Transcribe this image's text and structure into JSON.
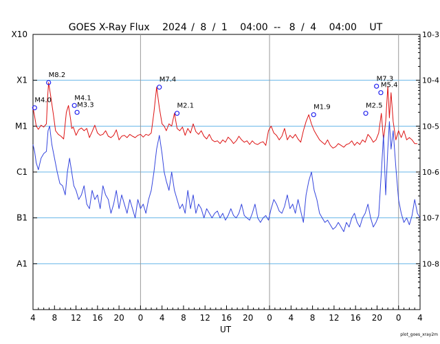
{
  "chart_data": {
    "type": "line",
    "title": {
      "name": "GOES X-Ray Flux",
      "start_year": "2024",
      "start_month": "8",
      "start_day": "1",
      "start_time": "04:00",
      "separator": "--",
      "end_month": "8",
      "end_day": "4",
      "end_time": "04:00",
      "unit": "UT"
    },
    "xlabel": "UT",
    "x_range_hours": [
      0,
      72
    ],
    "x_tick_labels": [
      "4",
      "8",
      "12",
      "16",
      "20",
      "0",
      "4",
      "8",
      "12",
      "16",
      "20",
      "0",
      "4",
      "8",
      "12",
      "16",
      "20",
      "0",
      "4"
    ],
    "day_boundaries_hours": [
      20,
      44,
      68
    ],
    "flare_class_labels": [
      "X10",
      "X1",
      "M1",
      "C1",
      "B1",
      "A1"
    ],
    "flare_class_exponents": [
      -3,
      -4,
      -5,
      -6,
      -7,
      -8
    ],
    "right_axis_labels": [
      "10-3",
      "10-4",
      "10-5",
      "10-6",
      "10-7",
      "10-8"
    ],
    "right_axis_exponents": [
      -3,
      -4,
      -5,
      -6,
      -7,
      -8
    ],
    "ylim_log10": [
      -9,
      -3
    ],
    "credit": "plot_goes_xray2m",
    "series": [
      {
        "name": "long",
        "color": "#dd1111",
        "x": [
          0.0,
          0.3,
          0.6,
          1.0,
          1.5,
          2.0,
          2.5,
          2.7,
          2.9,
          3.3,
          3.8,
          4.2,
          4.7,
          5.2,
          5.7,
          6.2,
          6.6,
          7.0,
          7.2,
          7.5,
          8.0,
          8.5,
          9.0,
          9.5,
          10.0,
          10.5,
          11.0,
          11.5,
          12.0,
          12.5,
          13.0,
          13.5,
          14.0,
          14.5,
          15.0,
          15.5,
          16.0,
          16.5,
          17.0,
          17.5,
          18.0,
          18.5,
          19.0,
          19.5,
          20.0,
          20.5,
          21.0,
          21.5,
          22.0,
          22.5,
          23.0,
          23.5,
          24.0,
          24.4,
          24.8,
          25.3,
          25.8,
          26.3,
          26.8,
          27.3,
          27.8,
          28.3,
          28.8,
          29.3,
          29.8,
          30.3,
          30.8,
          31.3,
          31.8,
          32.3,
          32.8,
          33.3,
          33.8,
          34.3,
          34.8,
          35.3,
          35.8,
          36.3,
          36.8,
          37.3,
          37.8,
          38.3,
          38.8,
          39.3,
          39.8,
          40.3,
          40.8,
          41.3,
          41.8,
          42.3,
          42.8,
          43.3,
          43.8,
          44.3,
          44.8,
          45.3,
          45.8,
          46.3,
          46.8,
          47.3,
          47.8,
          48.3,
          48.8,
          49.3,
          49.8,
          50.3,
          50.8,
          51.3,
          51.8,
          52.3,
          52.8,
          53.3,
          53.8,
          54.3,
          54.8,
          55.3,
          55.8,
          56.3,
          56.8,
          57.3,
          57.8,
          58.3,
          58.8,
          59.3,
          59.8,
          60.3,
          60.8,
          61.3,
          61.8,
          62.3,
          62.8,
          63.3,
          63.8,
          64.3,
          64.8,
          65.2,
          65.6,
          66.0,
          66.3,
          66.6,
          67.0,
          67.5,
          68.0,
          68.5,
          69.0,
          69.5,
          70.0,
          70.5,
          71.0,
          71.5,
          72.0
        ],
        "log10": [
          -4.6,
          -4.78,
          -5.0,
          -5.07,
          -4.98,
          -5.02,
          -4.95,
          -4.4,
          -4.05,
          -4.35,
          -4.75,
          -5.1,
          -5.18,
          -5.22,
          -5.28,
          -4.7,
          -4.55,
          -4.85,
          -5.05,
          -5.02,
          -5.2,
          -5.08,
          -5.04,
          -5.1,
          -5.05,
          -5.25,
          -5.12,
          -4.98,
          -5.15,
          -5.2,
          -5.18,
          -5.1,
          -5.22,
          -5.25,
          -5.2,
          -5.08,
          -5.3,
          -5.22,
          -5.2,
          -5.25,
          -5.18,
          -5.22,
          -5.25,
          -5.2,
          -5.18,
          -5.24,
          -5.18,
          -5.2,
          -5.15,
          -4.7,
          -4.15,
          -4.6,
          -4.95,
          -5.0,
          -5.1,
          -4.95,
          -5.0,
          -4.72,
          -5.05,
          -5.1,
          -5.02,
          -5.2,
          -5.05,
          -5.15,
          -4.95,
          -5.12,
          -5.18,
          -5.1,
          -5.22,
          -5.28,
          -5.18,
          -5.3,
          -5.34,
          -5.32,
          -5.38,
          -5.3,
          -5.35,
          -5.24,
          -5.3,
          -5.38,
          -5.32,
          -5.22,
          -5.3,
          -5.35,
          -5.32,
          -5.4,
          -5.32,
          -5.38,
          -5.4,
          -5.36,
          -5.34,
          -5.42,
          -5.1,
          -5.0,
          -5.15,
          -5.2,
          -5.3,
          -5.22,
          -5.05,
          -5.3,
          -5.2,
          -5.26,
          -5.18,
          -5.28,
          -5.35,
          -5.1,
          -4.9,
          -4.75,
          -4.95,
          -5.1,
          -5.2,
          -5.3,
          -5.35,
          -5.4,
          -5.3,
          -5.42,
          -5.48,
          -5.45,
          -5.38,
          -5.42,
          -5.46,
          -5.4,
          -5.38,
          -5.32,
          -5.42,
          -5.35,
          -5.4,
          -5.3,
          -5.35,
          -5.18,
          -5.25,
          -5.35,
          -5.3,
          -5.15,
          -4.72,
          -5.3,
          -4.9,
          -4.13,
          -4.82,
          -4.27,
          -4.9,
          -5.3,
          -5.1,
          -5.25,
          -5.1,
          -5.3,
          -5.25,
          -5.3,
          -5.38,
          -5.38
        ]
      },
      {
        "name": "short",
        "color": "#3344dd",
        "x": [
          0.0,
          0.3,
          0.6,
          1.0,
          1.5,
          2.0,
          2.5,
          2.8,
          3.1,
          3.5,
          4.0,
          4.5,
          5.0,
          5.5,
          6.0,
          6.4,
          6.8,
          7.2,
          7.6,
          8.0,
          8.5,
          9.0,
          9.5,
          10.0,
          10.5,
          11.0,
          11.5,
          12.0,
          12.5,
          13.0,
          13.5,
          14.0,
          14.5,
          15.0,
          15.5,
          16.0,
          16.5,
          17.0,
          17.5,
          18.0,
          18.5,
          19.0,
          19.5,
          20.0,
          20.5,
          21.0,
          21.5,
          22.0,
          22.5,
          23.0,
          23.5,
          24.0,
          24.4,
          24.8,
          25.3,
          25.8,
          26.3,
          26.8,
          27.3,
          27.8,
          28.3,
          28.8,
          29.3,
          29.8,
          30.3,
          30.8,
          31.3,
          31.8,
          32.3,
          32.8,
          33.3,
          33.8,
          34.3,
          34.8,
          35.3,
          35.8,
          36.3,
          36.8,
          37.3,
          37.8,
          38.3,
          38.8,
          39.3,
          39.8,
          40.3,
          40.8,
          41.3,
          41.8,
          42.3,
          42.8,
          43.3,
          43.8,
          44.3,
          44.8,
          45.3,
          45.8,
          46.3,
          46.8,
          47.3,
          47.8,
          48.3,
          48.8,
          49.3,
          49.8,
          50.3,
          50.8,
          51.3,
          51.8,
          52.3,
          52.8,
          53.3,
          53.8,
          54.3,
          54.8,
          55.3,
          55.8,
          56.3,
          56.8,
          57.3,
          57.8,
          58.3,
          58.8,
          59.3,
          59.8,
          60.3,
          60.8,
          61.3,
          61.8,
          62.3,
          62.8,
          63.3,
          63.8,
          64.3,
          64.8,
          65.2,
          65.6,
          66.0,
          66.3,
          66.6,
          67.0,
          67.5,
          68.0,
          68.5,
          69.0,
          69.5,
          70.0,
          70.5,
          71.0,
          71.5,
          72.0
        ],
        "log10": [
          -5.4,
          -5.55,
          -5.8,
          -5.95,
          -5.7,
          -5.6,
          -5.55,
          -5.1,
          -5.0,
          -5.4,
          -5.7,
          -6.0,
          -6.25,
          -6.3,
          -6.5,
          -6.0,
          -5.7,
          -6.0,
          -6.3,
          -6.4,
          -6.6,
          -6.5,
          -6.3,
          -6.7,
          -6.8,
          -6.4,
          -6.6,
          -6.5,
          -6.8,
          -6.3,
          -6.5,
          -6.6,
          -6.9,
          -6.7,
          -6.4,
          -6.8,
          -6.5,
          -6.7,
          -6.9,
          -6.6,
          -6.8,
          -7.0,
          -6.6,
          -6.8,
          -6.7,
          -6.9,
          -6.6,
          -6.4,
          -6.0,
          -5.5,
          -5.2,
          -5.6,
          -6.0,
          -6.2,
          -6.4,
          -6.0,
          -6.4,
          -6.6,
          -6.8,
          -6.7,
          -6.9,
          -6.4,
          -6.8,
          -6.5,
          -6.9,
          -6.7,
          -6.8,
          -7.0,
          -6.8,
          -6.9,
          -7.0,
          -6.9,
          -6.85,
          -7.0,
          -6.9,
          -7.05,
          -6.95,
          -6.8,
          -6.95,
          -7.0,
          -6.9,
          -6.7,
          -6.95,
          -7.0,
          -7.05,
          -6.9,
          -6.7,
          -7.0,
          -7.1,
          -7.0,
          -6.95,
          -7.05,
          -6.8,
          -6.6,
          -6.7,
          -6.85,
          -6.9,
          -6.75,
          -6.5,
          -6.8,
          -6.7,
          -6.9,
          -6.6,
          -6.85,
          -7.1,
          -6.5,
          -6.2,
          -6.0,
          -6.4,
          -6.6,
          -6.9,
          -7.0,
          -7.1,
          -7.05,
          -7.15,
          -7.25,
          -7.2,
          -7.1,
          -7.2,
          -7.3,
          -7.1,
          -7.2,
          -7.0,
          -6.9,
          -7.1,
          -7.2,
          -7.0,
          -6.9,
          -6.7,
          -7.0,
          -7.2,
          -7.1,
          -6.95,
          -6.0,
          -5.2,
          -6.5,
          -5.5,
          -4.9,
          -5.5,
          -5.1,
          -5.9,
          -6.6,
          -6.9,
          -7.1,
          -7.0,
          -7.15,
          -6.95,
          -6.6,
          -6.9,
          -7.0
        ]
      }
    ],
    "flares": [
      {
        "label": "M4.0",
        "x": 0.3,
        "log10": -4.6
      },
      {
        "label": "M8.2",
        "x": 2.9,
        "log10": -4.05
      },
      {
        "label": "M4.1",
        "x": 7.7,
        "log10": -4.55
      },
      {
        "label": "M3.3",
        "x": 8.2,
        "log10": -4.7
      },
      {
        "label": "M7.4",
        "x": 23.5,
        "log10": -4.15
      },
      {
        "label": "M2.1",
        "x": 26.8,
        "log10": -4.72
      },
      {
        "label": "M1.9",
        "x": 52.2,
        "log10": -4.75
      },
      {
        "label": "M2.5",
        "x": 61.9,
        "log10": -4.72
      },
      {
        "label": "M7.3",
        "x": 63.9,
        "log10": -4.13
      },
      {
        "label": "M5.4",
        "x": 64.7,
        "log10": -4.27
      }
    ]
  }
}
